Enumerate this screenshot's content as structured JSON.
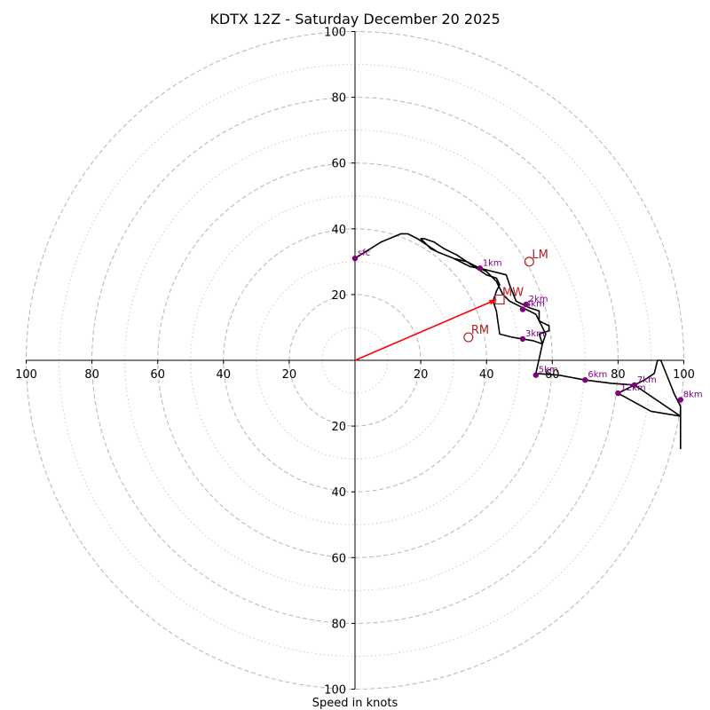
{
  "chart_data": {
    "type": "hodograph",
    "title": "KDTX 12Z - Saturday December 20 2025",
    "xlabel": "Speed in knots",
    "xlim": [
      -100,
      100
    ],
    "ylim": [
      -100,
      100
    ],
    "ring_major": [
      20,
      40,
      60,
      80,
      100
    ],
    "ring_minor": [
      10,
      30,
      50,
      70,
      90
    ],
    "x_ticks": [
      {
        "value": -100,
        "label": "100"
      },
      {
        "value": -80,
        "label": "80"
      },
      {
        "value": -60,
        "label": "60"
      },
      {
        "value": -40,
        "label": "40"
      },
      {
        "value": -20,
        "label": "20"
      },
      {
        "value": 20,
        "label": "20"
      },
      {
        "value": 40,
        "label": "40"
      },
      {
        "value": 60,
        "label": "60"
      },
      {
        "value": 80,
        "label": "80"
      },
      {
        "value": 100,
        "label": "100"
      }
    ],
    "y_ticks": [
      {
        "value": 100,
        "label": "100"
      },
      {
        "value": 80,
        "label": "80"
      },
      {
        "value": 60,
        "label": "60"
      },
      {
        "value": 40,
        "label": "40"
      },
      {
        "value": 20,
        "label": "20"
      },
      {
        "value": -20,
        "label": "20"
      },
      {
        "value": -40,
        "label": "40"
      },
      {
        "value": -60,
        "label": "60"
      },
      {
        "value": -80,
        "label": "80"
      },
      {
        "value": -100,
        "label": "100"
      }
    ],
    "trace": [
      [
        0,
        31
      ],
      [
        8,
        36
      ],
      [
        14,
        38.5
      ],
      [
        16,
        38.5
      ],
      [
        19,
        37
      ],
      [
        25,
        33
      ],
      [
        30,
        31
      ],
      [
        35,
        28.5
      ],
      [
        38,
        28
      ],
      [
        40,
        27.5
      ],
      [
        46,
        26
      ],
      [
        47,
        23
      ],
      [
        49,
        18
      ],
      [
        51,
        17
      ],
      [
        53,
        16
      ],
      [
        56,
        15
      ],
      [
        56,
        12
      ],
      [
        57,
        11.5
      ],
      [
        59,
        10.5
      ],
      [
        59,
        9
      ],
      [
        56,
        8
      ],
      [
        57,
        5
      ],
      [
        54,
        6
      ],
      [
        48,
        7
      ],
      [
        44,
        8
      ],
      [
        43,
        15
      ],
      [
        42,
        18
      ],
      [
        43,
        21
      ],
      [
        44,
        23
      ],
      [
        43,
        25
      ],
      [
        40,
        26
      ],
      [
        37,
        28
      ],
      [
        31,
        32
      ],
      [
        27,
        34
      ],
      [
        24,
        36
      ],
      [
        21,
        37
      ],
      [
        20,
        37
      ],
      [
        23,
        34
      ],
      [
        25,
        33
      ],
      [
        30,
        31
      ],
      [
        34,
        30
      ],
      [
        38,
        28
      ],
      [
        40,
        27
      ],
      [
        43,
        24
      ],
      [
        44,
        22
      ],
      [
        45,
        20
      ],
      [
        47,
        18
      ],
      [
        51,
        16
      ],
      [
        55,
        14
      ],
      [
        57,
        10
      ],
      [
        58,
        8
      ],
      [
        57,
        5
      ],
      [
        55,
        -4
      ],
      [
        62,
        -4.5
      ],
      [
        70,
        -6
      ],
      [
        78,
        -7
      ],
      [
        85,
        -7.5
      ],
      [
        88,
        -6
      ],
      [
        91,
        -4
      ],
      [
        92,
        0
      ],
      [
        93,
        0
      ],
      [
        95,
        -5
      ],
      [
        97,
        -10
      ],
      [
        99,
        -14
      ],
      [
        99,
        -17
      ],
      [
        90,
        -15.5
      ],
      [
        80,
        -10
      ],
      [
        85,
        -7.5
      ],
      [
        99,
        -17
      ],
      [
        99,
        -24
      ],
      [
        99,
        -27
      ]
    ],
    "height_points": [
      {
        "label": "sfc",
        "u": 0,
        "v": 31
      },
      {
        "label": "1km",
        "u": 38,
        "v": 28
      },
      {
        "label": "2km",
        "u": 52,
        "v": 17
      },
      {
        "label": "4km",
        "u": 51,
        "v": 15.5
      },
      {
        "label": "3km",
        "u": 51,
        "v": 6.5
      },
      {
        "label": "5km",
        "u": 55,
        "v": -4.5
      },
      {
        "label": "6km",
        "u": 70,
        "v": -6
      },
      {
        "label": "7km",
        "u": 85,
        "v": -7.5
      },
      {
        "label": "12km",
        "u": 80,
        "v": -10
      },
      {
        "label": "8km",
        "u": 99,
        "v": -12
      }
    ],
    "motion_points": [
      {
        "label": "LM",
        "u": 53,
        "v": 30,
        "marker": "circle"
      },
      {
        "label": "MW",
        "u": 44,
        "v": 18.5,
        "marker": "square"
      },
      {
        "label": "RM",
        "u": 34.5,
        "v": 7,
        "marker": "circle"
      }
    ],
    "arrow": {
      "from": [
        0,
        0
      ],
      "to": [
        43,
        18.5
      ]
    },
    "colors": {
      "trace": "#000000",
      "height_points": "#800080",
      "motion": "#b22222",
      "arrow": "#ff0000",
      "ring_major": "#bbbbbb",
      "ring_minor": "#cccccc"
    }
  }
}
